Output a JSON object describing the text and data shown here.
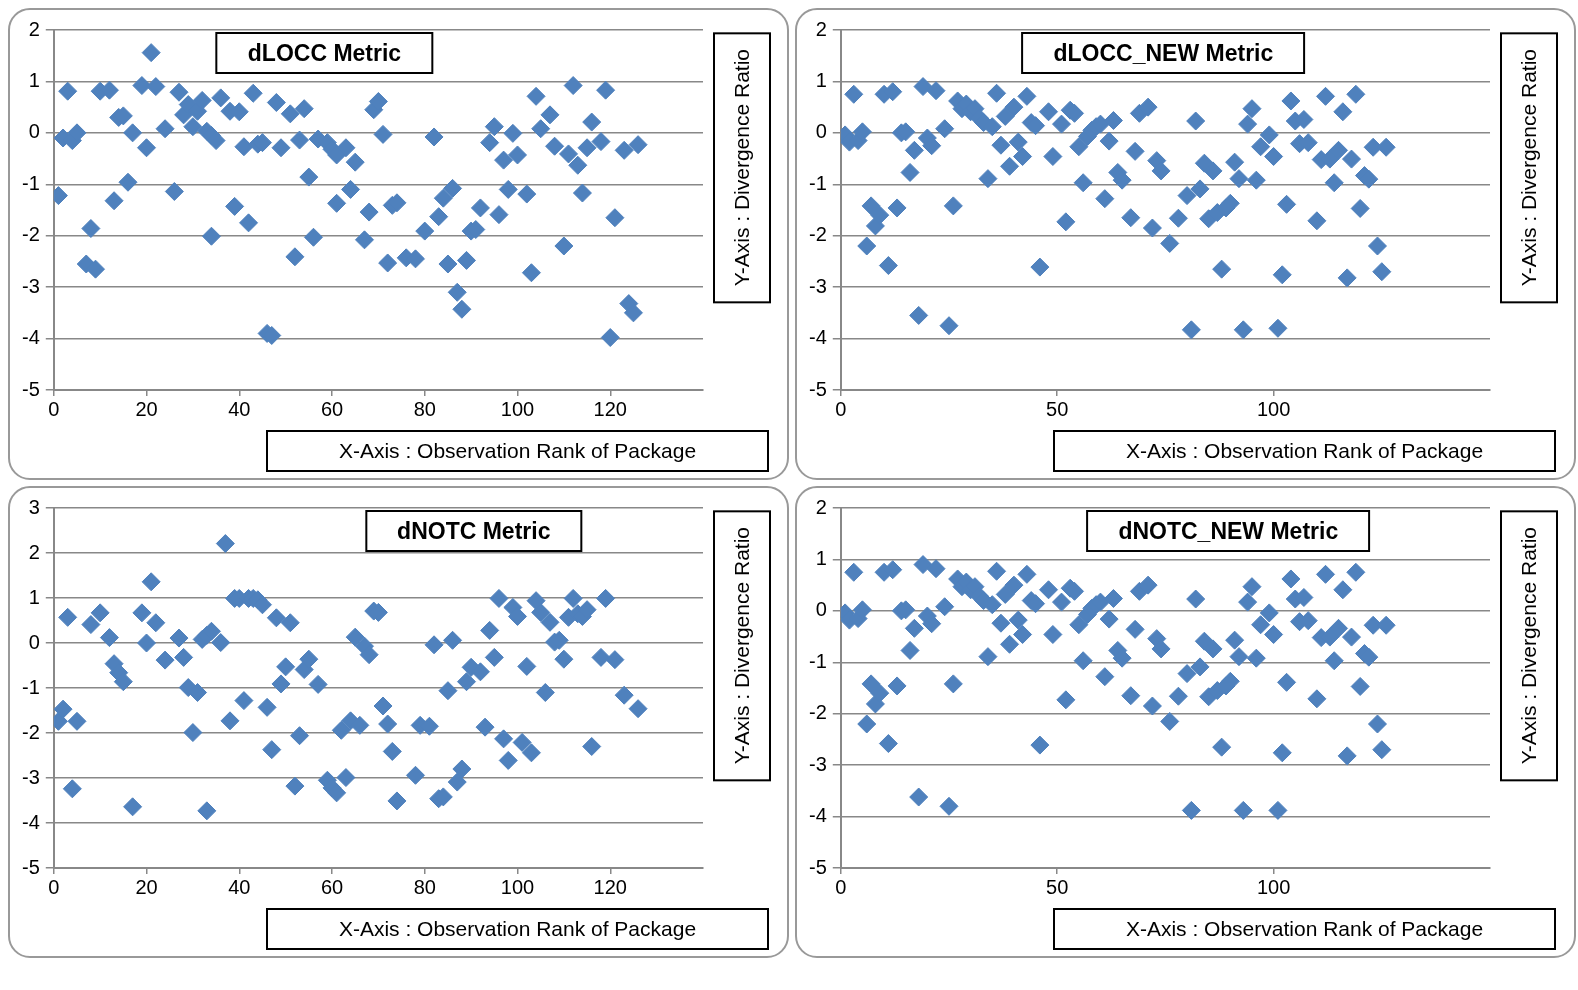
{
  "chart_data": [
    {
      "type": "scatter",
      "title": "dLOCC Metric",
      "xlabel": "X-Axis : Observation Rank of Package",
      "ylabel": "Y-Axis : Divergence Ratio",
      "color": "#4f81bd",
      "marker": "diamond",
      "grid": "y",
      "xlim": [
        0,
        140
      ],
      "xticks": [
        0,
        20,
        40,
        60,
        80,
        100,
        120
      ],
      "ylim": [
        -5,
        2
      ],
      "yticks": [
        -5,
        -4,
        -3,
        -2,
        -1,
        0,
        1,
        2
      ],
      "x": [
        1,
        2,
        3,
        4,
        5,
        8,
        7,
        9,
        10,
        12,
        13,
        14,
        15,
        16,
        17,
        19,
        20,
        21,
        22,
        24,
        26,
        27,
        28,
        29,
        30,
        31,
        32,
        33,
        34,
        34,
        35,
        36,
        38,
        39,
        40,
        41,
        42,
        43,
        44,
        45,
        46,
        47,
        48,
        49,
        51,
        52,
        53,
        54,
        55,
        56,
        57,
        59,
        60,
        61,
        61,
        63,
        64,
        65,
        67,
        68,
        69,
        70,
        71,
        72,
        73,
        74,
        76,
        78,
        80,
        82,
        83,
        84,
        85,
        86,
        87,
        88,
        89,
        90,
        91,
        92,
        94,
        95,
        96,
        97,
        98,
        99,
        100,
        102,
        103,
        104,
        105,
        107,
        108,
        110,
        111,
        112,
        113,
        114,
        115,
        116,
        118,
        119,
        120,
        121,
        123,
        124,
        125,
        126
      ],
      "values": [
        -1.22,
        -0.1,
        0.81,
        -0.15,
        0,
        -1.86,
        -2.55,
        -2.65,
        0.81,
        0.83,
        -1.32,
        0.3,
        0.33,
        -0.96,
        0,
        0.92,
        -0.29,
        1.56,
        0.9,
        0.08,
        -1.14,
        0.79,
        0.35,
        0.55,
        0.12,
        0.42,
        0.63,
        0.03,
        -2.01,
        -0.05,
        -0.15,
        0.68,
        0.42,
        -1.43,
        0.41,
        -0.27,
        -1.75,
        0.77,
        -0.22,
        -0.19,
        -3.9,
        -3.94,
        0.59,
        -0.29,
        0.37,
        -2.41,
        -0.14,
        0.47,
        -0.86,
        -2.03,
        -0.12,
        -0.19,
        -0.32,
        -1.37,
        -0.43,
        -0.29,
        -1.1,
        -0.57,
        -2.08,
        -1.54,
        0.45,
        0.61,
        -0.03,
        -2.53,
        -1.41,
        -1.36,
        -2.43,
        -2.45,
        -1.91,
        -0.08,
        -1.63,
        -1.27,
        -2.55,
        -1.08,
        -3.1,
        -3.43,
        -2.48,
        -1.91,
        -1.88,
        -1.46,
        -0.19,
        0.12,
        -1.59,
        -0.53,
        -1.1,
        -0.01,
        -0.43,
        -1.19,
        -2.72,
        0.71,
        0.08,
        0.35,
        -0.26,
        -2.2,
        -0.41,
        0.92,
        -0.63,
        -1.17,
        -0.29,
        0.21,
        -0.17,
        0.83,
        -3.98,
        -1.65,
        -0.34,
        -3.32,
        -3.5,
        -0.23
      ]
    },
    {
      "type": "scatter",
      "title": "dLOCC_NEW Metric",
      "xlabel": "X-Axis : Observation Rank of Package",
      "ylabel": "Y-Axis : Divergence Ratio",
      "color": "#4f81bd",
      "marker": "diamond",
      "grid": "y",
      "xlim": [
        0,
        150
      ],
      "xticks": [
        0,
        50,
        100
      ],
      "ylim": [
        -5,
        2
      ],
      "yticks": [
        -5,
        -4,
        -3,
        -2,
        -1,
        0,
        1,
        2
      ],
      "x": [
        1,
        2,
        3,
        4,
        5,
        6,
        7,
        8,
        9,
        10,
        11,
        12,
        13,
        14,
        15,
        16,
        17,
        18,
        19,
        20,
        21,
        22,
        24,
        25,
        26,
        27,
        28,
        29,
        30,
        31,
        32,
        33,
        34,
        35,
        36,
        37,
        38,
        39,
        40,
        41,
        42,
        43,
        44,
        45,
        46,
        48,
        49,
        51,
        52,
        53,
        54,
        55,
        56,
        57,
        58,
        59,
        60,
        61,
        62,
        63,
        64,
        65,
        67,
        68,
        69,
        71,
        72,
        73,
        74,
        76,
        78,
        80,
        81,
        82,
        83,
        84,
        85,
        86,
        87,
        88,
        89,
        90,
        91,
        92,
        93,
        94,
        95,
        96,
        97,
        99,
        100,
        101,
        102,
        103,
        104,
        105,
        106,
        107,
        108,
        110,
        111,
        112,
        113,
        114,
        115,
        116,
        117,
        118,
        119,
        120,
        121,
        122,
        123,
        124,
        125,
        126
      ],
      "values": [
        -0.04,
        -0.18,
        0.75,
        -0.15,
        0.02,
        -2.2,
        -1.42,
        -1.81,
        -1.6,
        0.75,
        -2.58,
        0.8,
        -1.46,
        0,
        0.02,
        -0.77,
        -0.34,
        -3.55,
        0.9,
        -0.1,
        -0.25,
        0.82,
        0.08,
        -3.75,
        -1.42,
        0.62,
        0.47,
        0.56,
        0.41,
        0.47,
        0.29,
        0.2,
        -0.89,
        0.12,
        0.77,
        -0.24,
        0.32,
        -0.65,
        0.5,
        -0.18,
        -0.46,
        0.71,
        0.2,
        0.14,
        -2.61,
        0.41,
        -0.46,
        0.17,
        -1.73,
        0.44,
        0.38,
        -0.27,
        -0.97,
        -0.07,
        0.05,
        0.12,
        0.17,
        -1.28,
        -0.16,
        0.24,
        -0.77,
        -0.92,
        -1.65,
        -0.36,
        0.38,
        0.5,
        -1.85,
        -0.54,
        -0.74,
        -2.15,
        -1.66,
        -1.22,
        -3.83,
        0.23,
        -1.09,
        -0.59,
        -1.67,
        -0.74,
        -1.55,
        -2.65,
        -1.46,
        -1.37,
        -0.57,
        -0.89,
        -3.83,
        0.17,
        0.47,
        -0.92,
        -0.27,
        -0.04,
        -0.46,
        -3.8,
        -2.76,
        -1.39,
        0.62,
        0.23,
        -0.21,
        0.26,
        -0.19,
        -1.71,
        -0.52,
        0.71,
        -0.51,
        -0.97,
        -0.34,
        0.41,
        -2.82,
        -0.51,
        0.75,
        -1.47,
        -0.83,
        -0.9,
        -0.28,
        -2.2,
        -2.7,
        -0.28
      ]
    },
    {
      "type": "scatter",
      "title": "dNOTC Metric",
      "xlabel": "X-Axis : Observation Rank of Package",
      "ylabel": "Y-Axis : Divergence Ratio",
      "color": "#4f81bd",
      "marker": "diamond",
      "grid": "y",
      "xlim": [
        0,
        140
      ],
      "xticks": [
        0,
        20,
        40,
        60,
        80,
        100,
        120
      ],
      "ylim": [
        -5,
        3
      ],
      "yticks": [
        -5,
        -4,
        -3,
        -2,
        -1,
        0,
        1,
        2,
        3
      ],
      "x": [
        1,
        2,
        3,
        4,
        5,
        8,
        10,
        12,
        13,
        14,
        15,
        17,
        19,
        20,
        21,
        22,
        24,
        27,
        28,
        29,
        30,
        31,
        32,
        33,
        34,
        33,
        36,
        37,
        38,
        39,
        40,
        41,
        42,
        43,
        44,
        45,
        46,
        47,
        48,
        49,
        50,
        51,
        52,
        53,
        54,
        55,
        57,
        59,
        60,
        61,
        62,
        63,
        64,
        65,
        66,
        67,
        68,
        69,
        70,
        71,
        72,
        73,
        74,
        78,
        79,
        81,
        82,
        83,
        84,
        85,
        86,
        87,
        88,
        89,
        90,
        92,
        93,
        94,
        95,
        96,
        97,
        98,
        99,
        100,
        101,
        102,
        103,
        104,
        105,
        106,
        107,
        108,
        109,
        110,
        111,
        112,
        113,
        114,
        115,
        116,
        118,
        119,
        121,
        123,
        126
      ],
      "values": [
        -1.74,
        -1.47,
        0.57,
        -3.24,
        -1.74,
        0.41,
        0.67,
        0.12,
        -0.46,
        -0.66,
        -0.86,
        -3.64,
        0.67,
        0,
        1.36,
        0.45,
        -0.38,
        0.11,
        -0.32,
        -0.99,
        -1.99,
        -1.1,
        0.08,
        0.17,
        0.26,
        -3.73,
        0.01,
        2.21,
        -1.73,
        0.99,
        0.99,
        -1.28,
        0.99,
        0.99,
        0.96,
        0.85,
        -1.43,
        -2.37,
        0.56,
        -0.91,
        -0.53,
        0.45,
        -3.18,
        -2.06,
        -0.59,
        -0.36,
        -0.92,
        -3.05,
        -3.22,
        -3.33,
        -1.94,
        -2.99,
        -1.73,
        0.13,
        -1.83,
        -0.07,
        -0.26,
        0.71,
        0.68,
        -1.4,
        -1.8,
        -2.41,
        -3.51,
        -2.94,
        -1.83,
        -1.85,
        -0.04,
        -3.46,
        -3.42,
        -1.06,
        0.06,
        -3.09,
        -2.8,
        -0.86,
        -0.54,
        -0.64,
        -1.87,
        0.28,
        -0.32,
        0.99,
        -2.13,
        -2.61,
        0.79,
        0.59,
        -2.21,
        -0.52,
        -2.44,
        0.94,
        0.68,
        -1.1,
        0.46,
        0.02,
        0.06,
        -0.36,
        0.57,
        0.99,
        0.65,
        0.59,
        0.74,
        -2.3,
        -0.32,
        0.99,
        -0.37,
        -1.16,
        -1.46
      ]
    },
    {
      "type": "scatter",
      "title": "dNOTC_NEW Metric",
      "xlabel": "X-Axis : Observation Rank of Package",
      "ylabel": "Y-Axis : Divergence Ratio",
      "color": "#4f81bd",
      "marker": "diamond",
      "grid": "y",
      "xlim": [
        0,
        150
      ],
      "xticks": [
        0,
        50,
        100
      ],
      "ylim": [
        -5,
        2
      ],
      "yticks": [
        -5,
        -4,
        -3,
        -2,
        -1,
        0,
        1,
        2
      ],
      "x": [
        1,
        2,
        3,
        4,
        5,
        6,
        7,
        8,
        9,
        10,
        11,
        12,
        13,
        14,
        15,
        16,
        17,
        18,
        19,
        20,
        21,
        22,
        24,
        25,
        26,
        27,
        28,
        29,
        30,
        31,
        32,
        33,
        34,
        35,
        36,
        37,
        38,
        39,
        40,
        41,
        42,
        43,
        44,
        45,
        46,
        48,
        49,
        51,
        52,
        53,
        54,
        55,
        56,
        57,
        58,
        59,
        60,
        61,
        62,
        63,
        64,
        65,
        67,
        68,
        69,
        71,
        72,
        73,
        74,
        76,
        78,
        80,
        81,
        82,
        83,
        84,
        85,
        86,
        87,
        88,
        89,
        90,
        91,
        92,
        93,
        94,
        95,
        96,
        97,
        99,
        100,
        101,
        102,
        103,
        104,
        105,
        106,
        107,
        108,
        110,
        111,
        112,
        113,
        114,
        115,
        116,
        117,
        118,
        119,
        120,
        121,
        122,
        123,
        124,
        125,
        126
      ],
      "values": [
        -0.04,
        -0.18,
        0.75,
        -0.15,
        0.02,
        -2.2,
        -1.42,
        -1.81,
        -1.6,
        0.75,
        -2.58,
        0.8,
        -1.46,
        0,
        0.02,
        -0.77,
        -0.34,
        -3.62,
        0.9,
        -0.1,
        -0.25,
        0.82,
        0.08,
        -3.8,
        -1.42,
        0.62,
        0.47,
        0.56,
        0.41,
        0.47,
        0.29,
        0.2,
        -0.89,
        0.12,
        0.77,
        -0.24,
        0.32,
        -0.65,
        0.5,
        -0.18,
        -0.46,
        0.71,
        0.2,
        0.14,
        -2.61,
        0.41,
        -0.46,
        0.17,
        -1.73,
        0.44,
        0.38,
        -0.27,
        -0.97,
        -0.07,
        0.05,
        0.12,
        0.17,
        -1.28,
        -0.16,
        0.24,
        -0.77,
        -0.92,
        -1.65,
        -0.36,
        0.38,
        0.5,
        -1.85,
        -0.54,
        -0.74,
        -2.15,
        -1.66,
        -1.22,
        -3.88,
        0.23,
        -1.09,
        -0.59,
        -1.67,
        -0.74,
        -1.55,
        -2.65,
        -1.46,
        -1.37,
        -0.57,
        -0.89,
        -3.88,
        0.17,
        0.47,
        -0.92,
        -0.27,
        -0.04,
        -0.46,
        -3.88,
        -2.76,
        -1.39,
        0.62,
        0.23,
        -0.21,
        0.26,
        -0.19,
        -1.71,
        -0.52,
        0.71,
        -0.51,
        -0.97,
        -0.34,
        0.41,
        -2.82,
        -0.51,
        0.75,
        -1.47,
        -0.83,
        -0.9,
        -0.28,
        -2.2,
        -2.7,
        -0.28
      ]
    }
  ]
}
